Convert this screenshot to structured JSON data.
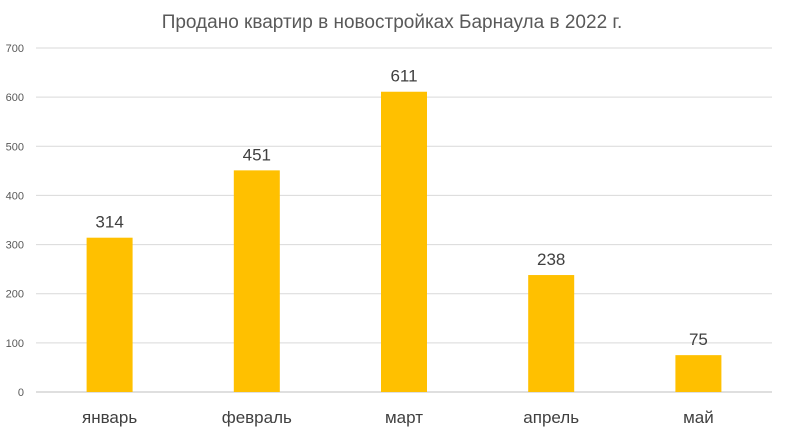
{
  "chart_data": {
    "type": "bar",
    "title": "Продано квартир в новостройках Барнаула в 2022 г.",
    "categories": [
      "январь",
      "февраль",
      "март",
      "апрель",
      "май"
    ],
    "values": [
      314,
      451,
      611,
      238,
      75
    ],
    "data_labels": [
      "314",
      "451",
      "611",
      "238",
      "75"
    ],
    "ylim": [
      0,
      700
    ],
    "yticks": [
      0,
      100,
      200,
      300,
      400,
      500,
      600,
      700
    ],
    "grid": true,
    "legend": "none",
    "bar_color": "#FFC000"
  }
}
